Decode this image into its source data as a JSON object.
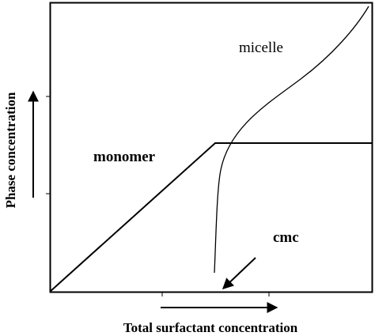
{
  "axes": {
    "x_label": "Total surfactant concentration",
    "y_label": "Phase concentration"
  },
  "labels": {
    "micelle": "micelle",
    "monomer": "monomer",
    "cmc": "cmc"
  }
}
